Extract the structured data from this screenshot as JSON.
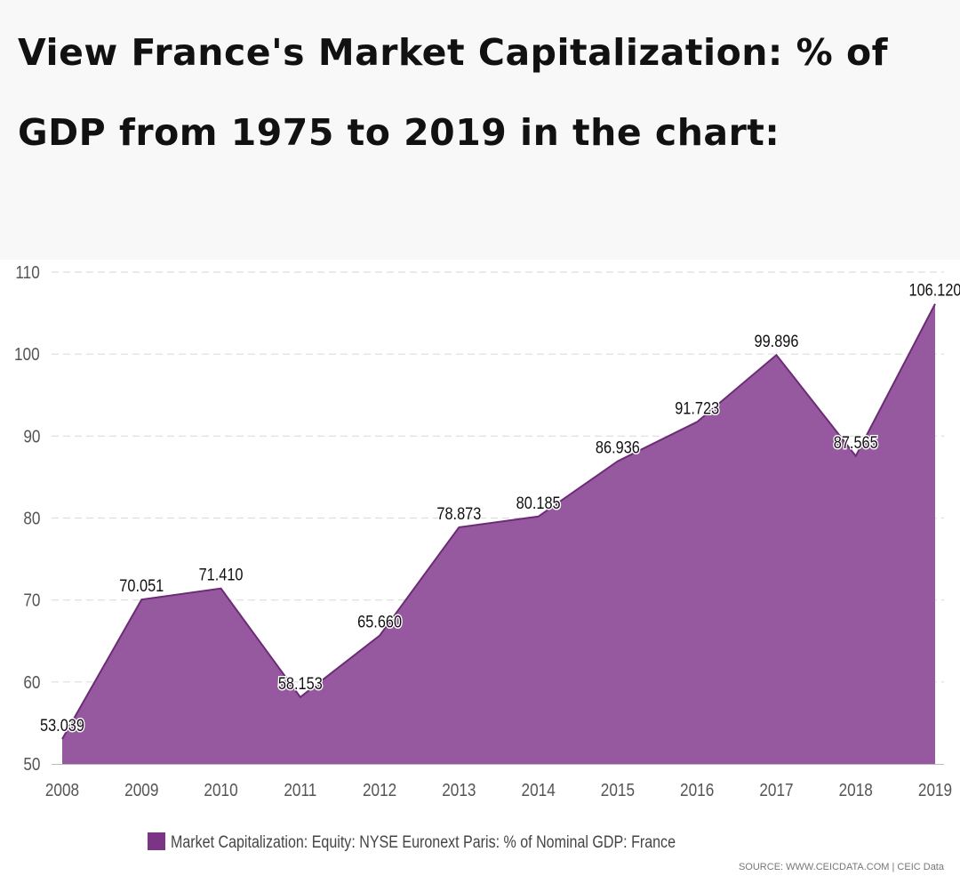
{
  "heading": "View France's Market Capitalization: % of GDP from 1975 to 2019 in the chart:",
  "chart_data": {
    "type": "area",
    "x": [
      "2008",
      "2009",
      "2010",
      "2011",
      "2012",
      "2013",
      "2014",
      "2015",
      "2016",
      "2017",
      "2018",
      "2019"
    ],
    "series": [
      {
        "name": "Market Capitalization: Equity: NYSE Euronext Paris: % of Nominal GDP: France",
        "values": [
          53.039,
          70.051,
          71.41,
          58.153,
          65.66,
          78.873,
          80.185,
          86.936,
          91.723,
          99.896,
          87.565,
          106.12
        ],
        "labels": [
          "53.039",
          "70.051",
          "71.410",
          "58.153",
          "65.660",
          "78.873",
          "80.185",
          "86.936",
          "91.723",
          "99.896",
          "87.565",
          "106.120"
        ],
        "color": "#96589e"
      }
    ],
    "ylim": [
      50,
      110
    ],
    "yticks": [
      50,
      60,
      70,
      80,
      90,
      100,
      110
    ],
    "grid": true,
    "legend_position": "bottom-center"
  },
  "source": "SOURCE: WWW.CEICDATA.COM | CEIC Data",
  "colors": {
    "area_fill": "#96589e",
    "area_line": "#6b2c75",
    "legend_swatch": "#7b3585",
    "grid": "#dddddd"
  }
}
